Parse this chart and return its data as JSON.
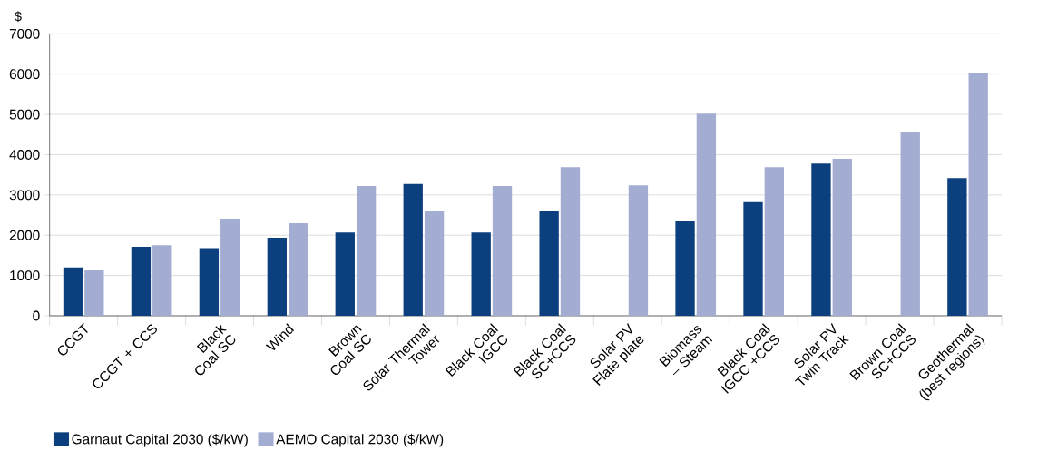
{
  "chart_data": {
    "type": "bar",
    "ylabel": "$",
    "categories": [
      "CCGT",
      "CCGT + CCS",
      "Black Coal SC",
      "Wind",
      "Brown Coal SC",
      "Solar Thermal Tower",
      "Black Coal IGCC",
      "Black Coal SC+CCS",
      "Solar PV Flate plate",
      "Biomass – Steam",
      "Black Coal IGCC +CCS",
      "Solar PV Twin Track",
      "Brown Coal SC+CCS",
      "Geothermal (best regions)"
    ],
    "series": [
      {
        "name": "Garnaut Capital 2030 ($/kW)",
        "color": "#0b3f7e",
        "values": [
          1200,
          1710,
          1680,
          1940,
          2070,
          3270,
          2070,
          2590,
          null,
          2360,
          2820,
          3780,
          null,
          3420
        ]
      },
      {
        "name": "AEMO Capital 2030 ($/kW)",
        "color": "#a3acd1",
        "values": [
          1150,
          1750,
          2410,
          2300,
          3220,
          2610,
          3220,
          3690,
          3240,
          5020,
          3690,
          3900,
          4550,
          6040
        ]
      }
    ],
    "ylim": [
      0,
      7000
    ],
    "yticks": [
      0,
      1000,
      2000,
      3000,
      4000,
      5000,
      6000,
      7000
    ],
    "grid": "y",
    "legend": "bottom left"
  }
}
